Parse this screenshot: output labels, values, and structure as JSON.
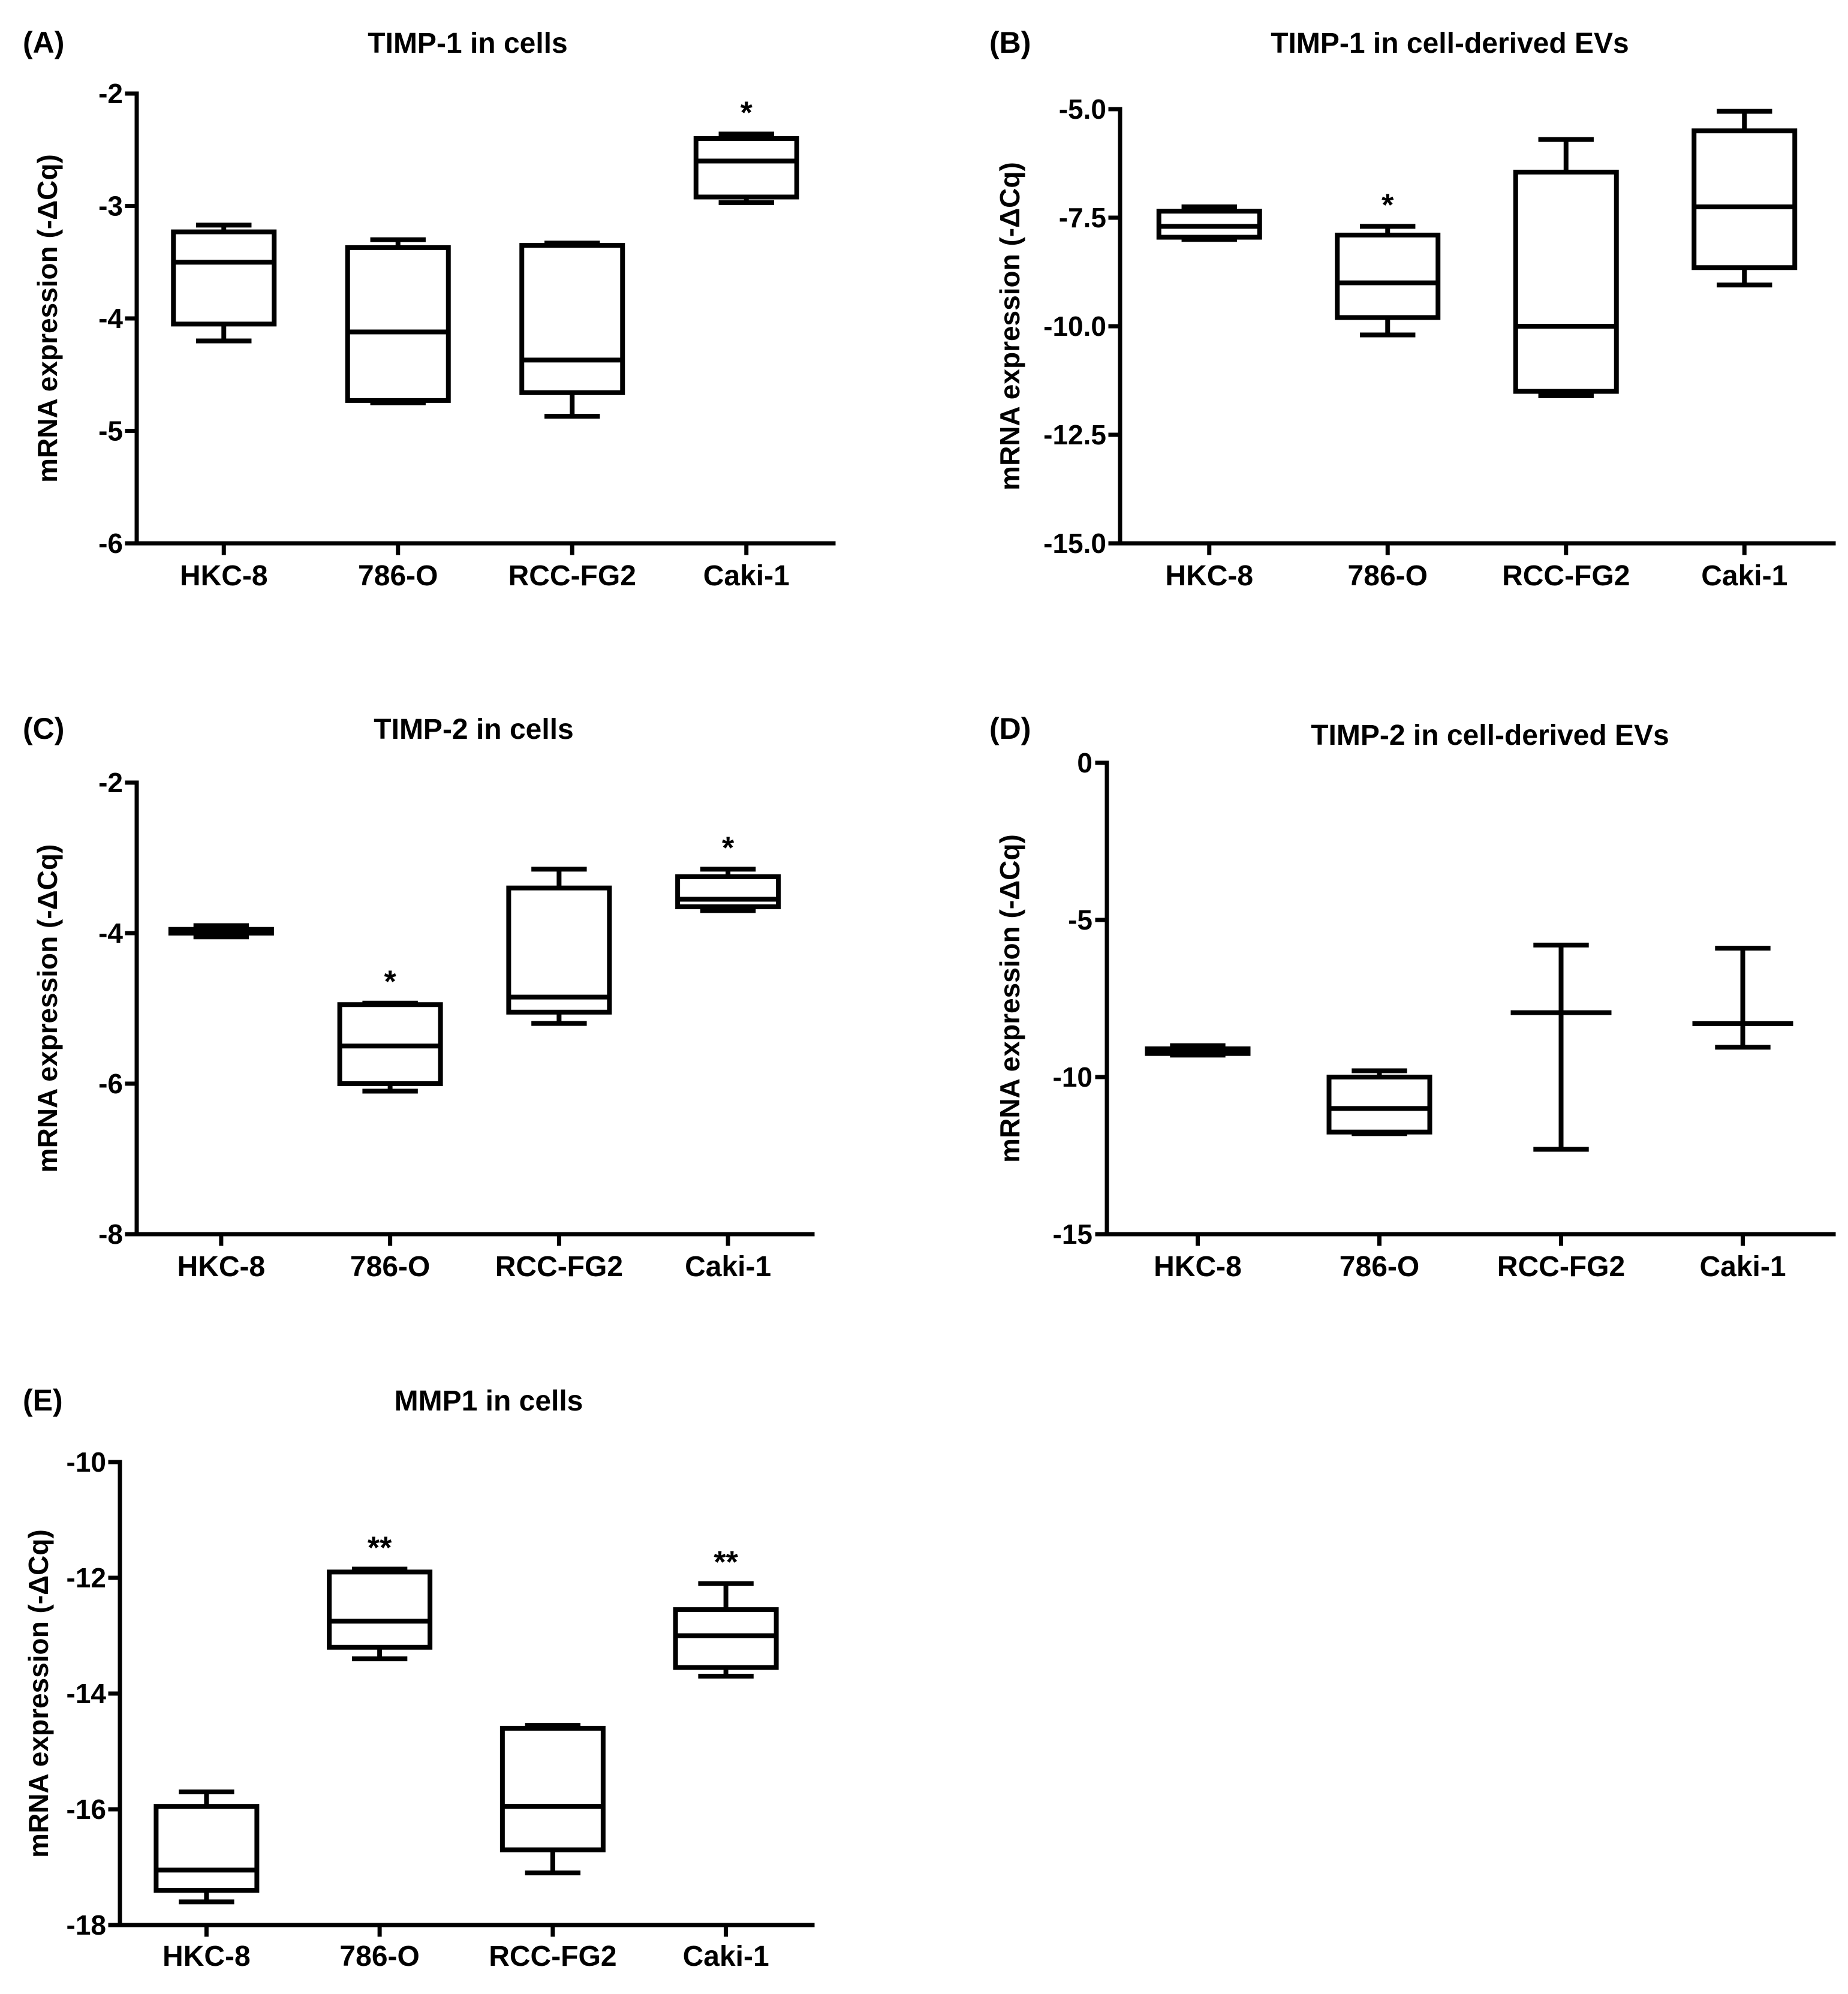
{
  "figure": {
    "ylabel": "mRNA expression (-ΔCq)"
  },
  "chart_data": [
    {
      "type": "box",
      "letter": "(A)",
      "title": "TIMP-1 in cells",
      "ylabel": "mRNA expression (-ΔCq)",
      "ylim": [
        -6,
        -2
      ],
      "ticks": [
        -2,
        -3,
        -4,
        -5,
        -6
      ],
      "tick_labels": [
        "-2",
        "-3",
        "-4",
        "-5",
        "-6"
      ],
      "categories": [
        "HKC-8",
        "786-O",
        "RCC-FG2",
        "Caki-1"
      ],
      "boxes": [
        {
          "min": -4.2,
          "q1": -4.05,
          "median": -3.5,
          "q3": -3.23,
          "max": -3.17,
          "sig": ""
        },
        {
          "min": -4.75,
          "q1": -4.73,
          "median": -4.12,
          "q3": -3.37,
          "max": -3.3,
          "sig": ""
        },
        {
          "min": -4.87,
          "q1": -4.66,
          "median": -4.37,
          "q3": -3.35,
          "max": -3.33,
          "sig": ""
        },
        {
          "min": -2.97,
          "q1": -2.92,
          "median": -2.6,
          "q3": -2.4,
          "max": -2.36,
          "sig": "*"
        }
      ]
    },
    {
      "type": "box",
      "letter": "(B)",
      "title": "TIMP-1 in cell-derived EVs",
      "ylabel": "mRNA expression (-ΔCq)",
      "ylim": [
        -15,
        -5
      ],
      "ticks": [
        -5,
        -7.5,
        -10,
        -12.5,
        -15
      ],
      "tick_labels": [
        "-5.0",
        "-7.5",
        "-10.0",
        "-12.5",
        "-15.0"
      ],
      "categories": [
        "HKC-8",
        "786-O",
        "RCC-FG2",
        "Caki-1"
      ],
      "boxes": [
        {
          "min": -8.0,
          "q1": -7.95,
          "median": -7.7,
          "q3": -7.35,
          "max": -7.25,
          "sig": ""
        },
        {
          "min": -10.2,
          "q1": -9.8,
          "median": -9.0,
          "q3": -7.9,
          "max": -7.7,
          "sig": "*"
        },
        {
          "min": -11.6,
          "q1": -11.5,
          "median": -10.0,
          "q3": -6.45,
          "max": -5.7,
          "sig": ""
        },
        {
          "min": -9.05,
          "q1": -8.65,
          "median": -7.25,
          "q3": -5.5,
          "max": -5.05,
          "sig": ""
        }
      ]
    },
    {
      "type": "box",
      "letter": "(C)",
      "title": "TIMP-2 in cells",
      "ylabel": "mRNA expression (-ΔCq)",
      "ylim": [
        -8,
        -2
      ],
      "ticks": [
        -2,
        -4,
        -6,
        -8
      ],
      "tick_labels": [
        "-2",
        "-4",
        "-6",
        "-8"
      ],
      "categories": [
        "HKC-8",
        "786-O",
        "RCC-FG2",
        "Caki-1"
      ],
      "boxes": [
        {
          "min": -4.05,
          "q1": -4.0,
          "median": -3.97,
          "q3": -3.95,
          "max": -3.9,
          "sig": ""
        },
        {
          "min": -6.1,
          "q1": -6.0,
          "median": -5.5,
          "q3": -4.95,
          "max": -4.93,
          "sig": "*"
        },
        {
          "min": -5.2,
          "q1": -5.05,
          "median": -4.85,
          "q3": -3.4,
          "max": -3.15,
          "sig": ""
        },
        {
          "min": -3.7,
          "q1": -3.65,
          "median": -3.55,
          "q3": -3.25,
          "max": -3.15,
          "sig": "*"
        }
      ]
    },
    {
      "type": "box",
      "letter": "(D)",
      "title": "TIMP-2 in cell-derived EVs",
      "ylabel": "mRNA expression (-ΔCq)",
      "ylim": [
        -15,
        0
      ],
      "ticks": [
        0,
        -5,
        -10,
        -15
      ],
      "tick_labels": [
        "0",
        "-5",
        "-10",
        "-15"
      ],
      "categories": [
        "HKC-8",
        "786-O",
        "RCC-FG2",
        "Caki-1"
      ],
      "boxes": [
        {
          "min": -9.3,
          "q1": -9.25,
          "median": -9.15,
          "q3": -9.1,
          "max": -9.0,
          "sig": ""
        },
        {
          "min": -11.8,
          "q1": -11.75,
          "median": -11.0,
          "q3": -10.0,
          "max": -9.8,
          "sig": ""
        },
        {
          "min": -12.3,
          "q1": -7.95,
          "median": -7.95,
          "q3": -7.95,
          "max": -5.8,
          "sig": ""
        },
        {
          "min": -9.05,
          "q1": -8.3,
          "median": -8.3,
          "q3": -8.3,
          "max": -5.9,
          "sig": ""
        }
      ]
    },
    {
      "type": "box",
      "letter": "(E)",
      "title": "MMP1 in cells",
      "ylabel": "mRNA expression (-ΔCq)",
      "ylim": [
        -18,
        -10
      ],
      "ticks": [
        -10,
        -12,
        -14,
        -16,
        -18
      ],
      "tick_labels": [
        "-10",
        "-12",
        "-14",
        "-16",
        "-18"
      ],
      "categories": [
        "HKC-8",
        "786-O",
        "RCC-FG2",
        "Caki-1"
      ],
      "boxes": [
        {
          "min": -17.6,
          "q1": -17.4,
          "median": -17.05,
          "q3": -15.95,
          "max": -15.7,
          "sig": ""
        },
        {
          "min": -13.4,
          "q1": -13.2,
          "median": -12.75,
          "q3": -11.9,
          "max": -11.85,
          "sig": "**"
        },
        {
          "min": -17.1,
          "q1": -16.7,
          "median": -15.95,
          "q3": -14.6,
          "max": -14.55,
          "sig": ""
        },
        {
          "min": -13.7,
          "q1": -13.55,
          "median": -13.0,
          "q3": -12.55,
          "max": -12.1,
          "sig": "**"
        }
      ]
    }
  ]
}
